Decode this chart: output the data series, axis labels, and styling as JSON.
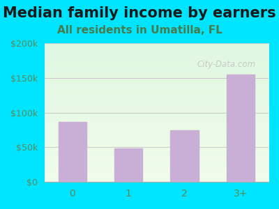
{
  "title": "Median family income by earners",
  "subtitle": "All residents in Umatilla, FL",
  "categories": [
    "0",
    "1",
    "2",
    "3+"
  ],
  "values": [
    87000,
    48000,
    75000,
    155000
  ],
  "bar_color": "#c9aed6",
  "background_outer": "#00e5ff",
  "title_color": "#1a1a1a",
  "subtitle_color": "#4a7a4a",
  "tick_color": "#5a8a5a",
  "grid_color": "#cccccc",
  "watermark": "City-Data.com",
  "ylim": [
    0,
    200000
  ],
  "yticks": [
    0,
    50000,
    100000,
    150000,
    200000
  ],
  "ytick_labels": [
    "$0",
    "$50k",
    "$100k",
    "$150k",
    "$200k"
  ],
  "title_fontsize": 15,
  "subtitle_fontsize": 11,
  "figsize": [
    4.0,
    3.0
  ],
  "dpi": 100
}
